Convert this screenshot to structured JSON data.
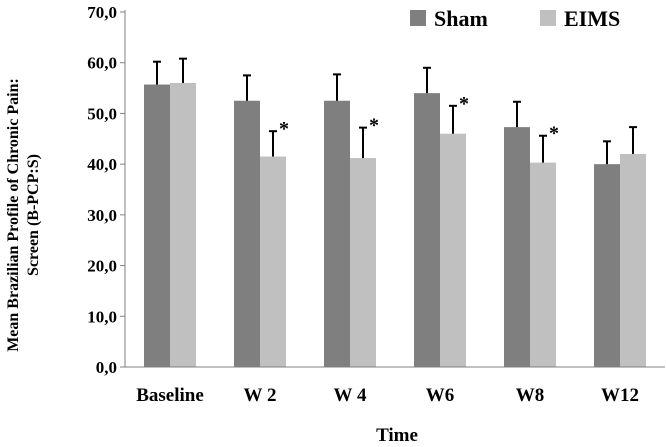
{
  "chart_data": {
    "type": "bar",
    "title": "",
    "xlabel": "Time",
    "ylabel_line1": "Mean Brazilian Profile of Chronic Pain:",
    "ylabel_line2": "Screen (B-PCP:S)",
    "ylim": [
      0,
      70
    ],
    "yticks": [
      "0,0",
      "10,0",
      "20,0",
      "30,0",
      "40,0",
      "50,0",
      "60,0",
      "70,0"
    ],
    "categories": [
      "Baseline",
      "W 2",
      "W 4",
      "W6",
      "W8",
      "W12"
    ],
    "series": [
      {
        "name": "Sham",
        "color": "#7f7f7f",
        "values": [
          55.7,
          52.5,
          52.5,
          54.0,
          47.3,
          40.0
        ],
        "error": [
          4.5,
          5.0,
          5.2,
          5.0,
          5.0,
          4.5
        ]
      },
      {
        "name": "EIMS",
        "color": "#c0c0c0",
        "values": [
          56.0,
          41.5,
          41.2,
          46.0,
          40.3,
          42.0
        ],
        "error": [
          4.8,
          5.0,
          6.0,
          5.5,
          5.3,
          5.3
        ]
      }
    ],
    "significance": [
      "",
      "*",
      "*",
      "*",
      "*",
      ""
    ],
    "grid": false,
    "legend_position": "top-right"
  }
}
